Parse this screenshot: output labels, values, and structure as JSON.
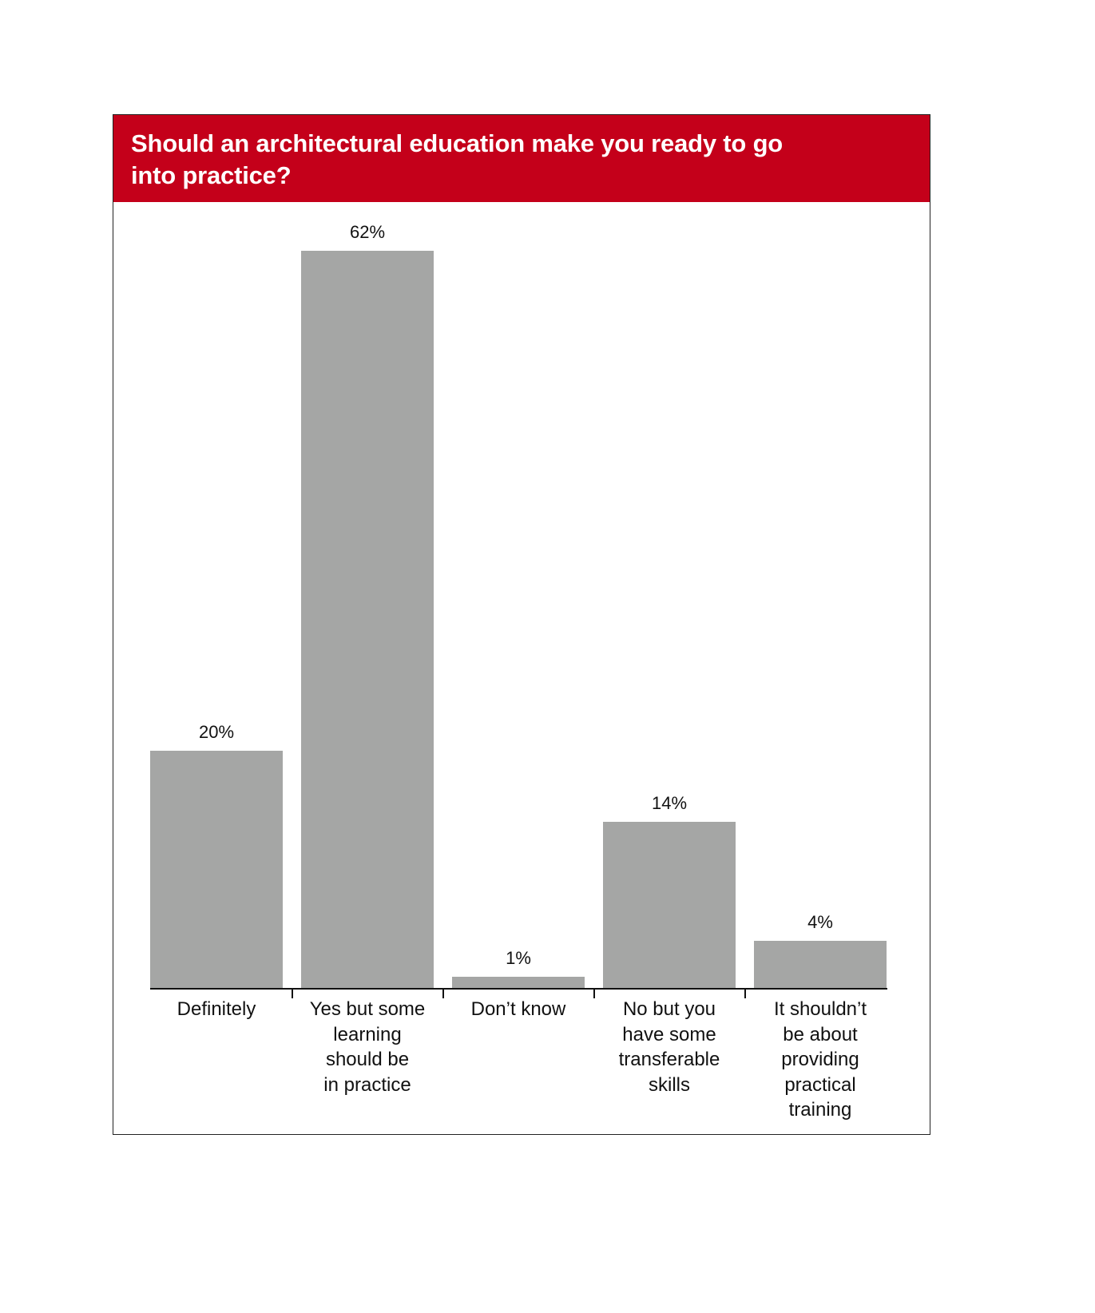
{
  "title": "Should an architectural education make you ready to go into practice?",
  "title_lines": [
    "Should an architectural education make you ready to go",
    "into practice?"
  ],
  "colors": {
    "header_bg": "#C4001A",
    "bar": "#A5A6A5",
    "axis": "#111111"
  },
  "bars": [
    {
      "label_lines": [
        "Definitely"
      ],
      "value": 20,
      "value_label": "20%"
    },
    {
      "label_lines": [
        "Yes but some",
        "learning",
        "should be",
        "in practice"
      ],
      "value": 62,
      "value_label": "62%"
    },
    {
      "label_lines": [
        "Don’t know"
      ],
      "value": 1,
      "value_label": "1%"
    },
    {
      "label_lines": [
        "No but you",
        "have some",
        "transferable",
        "skills"
      ],
      "value": 14,
      "value_label": "14%"
    },
    {
      "label_lines": [
        "It shouldn’t",
        "be about",
        "providing",
        "practical",
        "training"
      ],
      "value": 4,
      "value_label": "4%"
    }
  ],
  "chart_data": {
    "type": "bar",
    "title": "Should an architectural education make you ready to go into practice?",
    "categories": [
      "Definitely",
      "Yes but some learning should be in practice",
      "Don't know",
      "No but you have some transferable skills",
      "It shouldn't be about providing practical training"
    ],
    "values": [
      20,
      62,
      1,
      14,
      4
    ],
    "value_labels": [
      "20%",
      "62%",
      "1%",
      "14%",
      "4%"
    ],
    "xlabel": "",
    "ylabel": "",
    "unit": "%",
    "ylim": [
      0,
      62
    ],
    "grid": false,
    "legend": null,
    "y_axis_visible": false,
    "data_labels": true
  }
}
